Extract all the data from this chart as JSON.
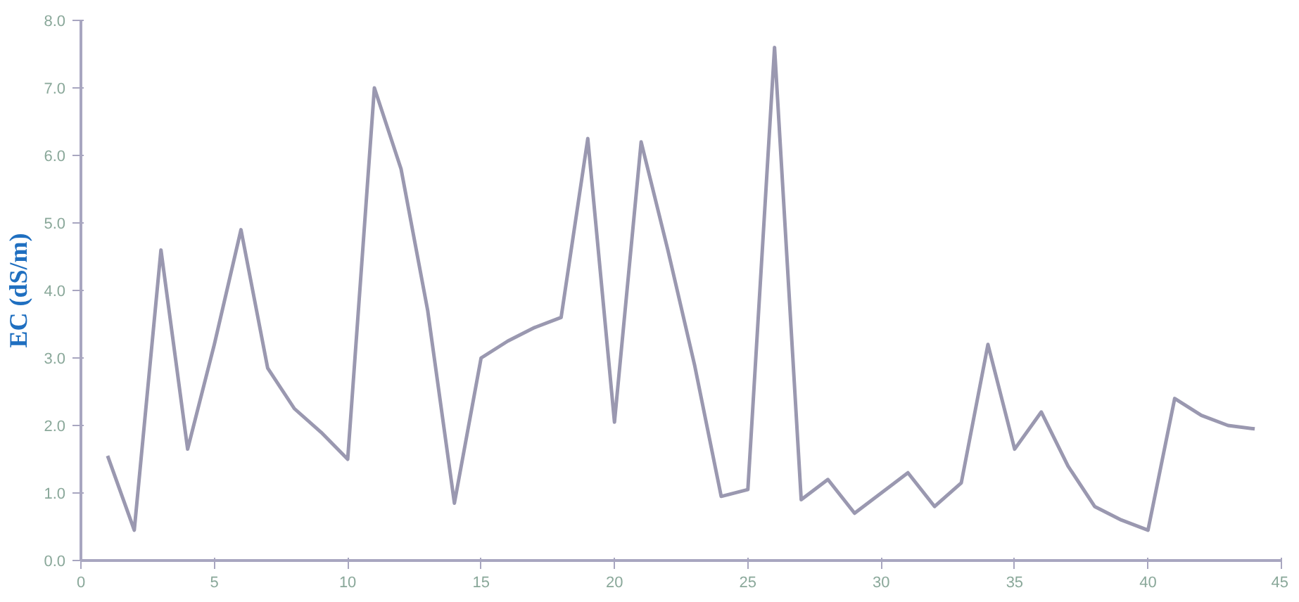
{
  "chart_data": {
    "type": "line",
    "ylabel": "EC (dS/m)",
    "x": [
      1,
      2,
      3,
      4,
      5,
      6,
      7,
      8,
      9,
      10,
      11,
      12,
      13,
      14,
      15,
      16,
      17,
      18,
      19,
      20,
      21,
      22,
      23,
      24,
      25,
      26,
      27,
      28,
      29,
      30,
      31,
      32,
      33,
      34,
      35,
      36,
      37,
      38,
      39,
      40,
      41,
      42,
      43,
      44
    ],
    "series": [
      {
        "color": "#9a98b0",
        "values": [
          1.55,
          0.45,
          4.6,
          1.65,
          3.2,
          4.9,
          2.85,
          2.25,
          1.9,
          1.5,
          7.0,
          5.8,
          3.7,
          0.85,
          3.0,
          3.25,
          3.45,
          3.6,
          6.25,
          2.05,
          6.2,
          4.6,
          2.9,
          0.95,
          1.05,
          7.6,
          0.9,
          1.2,
          0.7,
          1.0,
          1.3,
          0.8,
          1.15,
          3.2,
          1.65,
          2.2,
          1.4,
          0.8,
          0.6,
          0.45,
          2.4,
          2.15,
          2.0,
          1.95
        ]
      }
    ],
    "xlim": [
      0,
      45
    ],
    "xticks": [
      0,
      5,
      10,
      15,
      20,
      25,
      30,
      35,
      40,
      45
    ],
    "ylim": [
      0,
      8
    ],
    "yticks": [
      {
        "value": 0,
        "label": "0.0"
      },
      {
        "value": 1,
        "label": "1.0"
      },
      {
        "value": 2,
        "label": "2.0"
      },
      {
        "value": 3,
        "label": "3.0"
      },
      {
        "value": 4,
        "label": "4.0"
      },
      {
        "value": 5,
        "label": "5.0"
      },
      {
        "value": 6,
        "label": "6.0"
      },
      {
        "value": 7,
        "label": "7.0"
      },
      {
        "value": 8,
        "label": "8.0"
      }
    ],
    "grid": false,
    "marker": "none",
    "line_style": "solid"
  }
}
